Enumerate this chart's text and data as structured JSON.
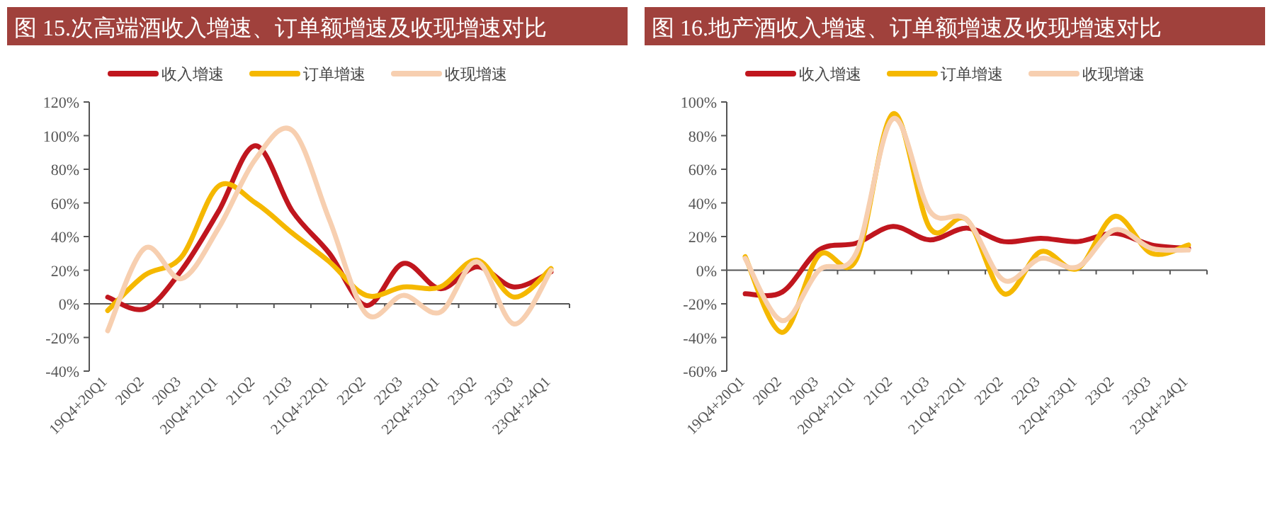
{
  "chart_data": [
    {
      "type": "line",
      "title": "图 15.次高端酒收入增速、订单额增速及收现增速对比",
      "categories": [
        "19Q4+20Q1",
        "20Q2",
        "20Q3",
        "20Q4+21Q1",
        "21Q2",
        "21Q3",
        "21Q4+22Q1",
        "22Q2",
        "22Q3",
        "22Q4+23Q1",
        "23Q2",
        "23Q3",
        "23Q4+24Q1"
      ],
      "series": [
        {
          "name": "收入增速",
          "color": "#c0161e",
          "values": [
            4,
            -3,
            20,
            55,
            94,
            55,
            30,
            -1,
            24,
            9,
            22,
            10,
            19
          ]
        },
        {
          "name": "订单增速",
          "color": "#f5b800",
          "values": [
            -4,
            17,
            28,
            70,
            60,
            42,
            25,
            5,
            10,
            10,
            26,
            4,
            21
          ]
        },
        {
          "name": "收现增速",
          "color": "#f7cfb0",
          "values": [
            -16,
            33,
            15,
            45,
            86,
            103,
            50,
            -6,
            5,
            -5,
            25,
            -12,
            20
          ]
        }
      ],
      "ylim": [
        -40,
        120
      ],
      "yticks": [
        {
          "value": -40,
          "label": "-40%"
        },
        {
          "value": -20,
          "label": "-20%"
        },
        {
          "value": 0,
          "label": "0%"
        },
        {
          "value": 20,
          "label": "20%"
        },
        {
          "value": 40,
          "label": "40%"
        },
        {
          "value": 60,
          "label": "60%"
        },
        {
          "value": 80,
          "label": "80%"
        },
        {
          "value": 100,
          "label": "100%"
        },
        {
          "value": 120,
          "label": "120%"
        }
      ],
      "legend": "top"
    },
    {
      "type": "line",
      "title": "图 16.地产酒收入增速、订单额增速及收现增速对比",
      "categories": [
        "19Q4+20Q1",
        "20Q2",
        "20Q3",
        "20Q4+21Q1",
        "21Q2",
        "21Q3",
        "21Q4+22Q1",
        "22Q2",
        "22Q3",
        "22Q4+23Q1",
        "23Q2",
        "23Q3",
        "23Q4+24Q1"
      ],
      "series": [
        {
          "name": "收入增速",
          "color": "#c0161e",
          "values": [
            -14,
            -13,
            12,
            16,
            26,
            18,
            25,
            17,
            19,
            17,
            22,
            15,
            13
          ]
        },
        {
          "name": "订单增速",
          "color": "#f5b800",
          "values": [
            8,
            -37,
            9,
            6,
            93,
            25,
            30,
            -14,
            11,
            1,
            32,
            10,
            15
          ]
        },
        {
          "name": "收现增速",
          "color": "#f7cfb0",
          "values": [
            7,
            -30,
            0,
            10,
            90,
            35,
            30,
            -6,
            7,
            2,
            24,
            13,
            12
          ]
        }
      ],
      "ylim": [
        -60,
        100
      ],
      "yticks": [
        {
          "value": -60,
          "label": "-60%"
        },
        {
          "value": -40,
          "label": "-40%"
        },
        {
          "value": -20,
          "label": "-20%"
        },
        {
          "value": 0,
          "label": "0%"
        },
        {
          "value": 20,
          "label": "20%"
        },
        {
          "value": 40,
          "label": "40%"
        },
        {
          "value": 60,
          "label": "60%"
        },
        {
          "value": 80,
          "label": "80%"
        },
        {
          "value": 100,
          "label": "100%"
        }
      ],
      "legend": "top"
    }
  ]
}
